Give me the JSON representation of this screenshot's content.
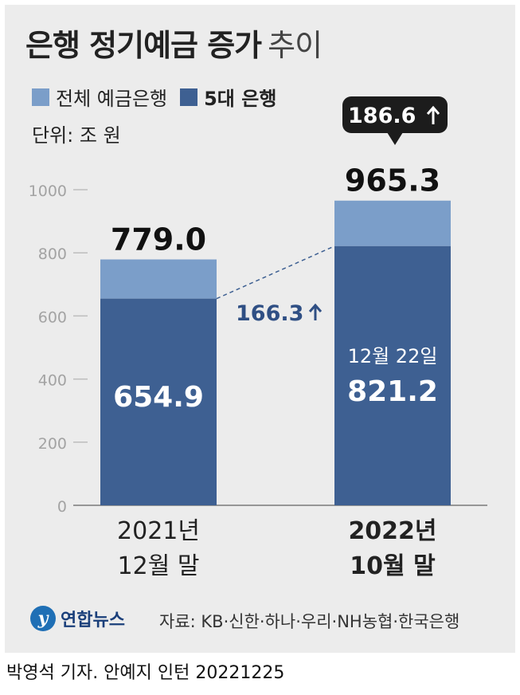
{
  "header": {
    "title_strong": "은행 정기예금 증가",
    "title_light": "추이"
  },
  "legend": [
    {
      "label": "전체 예금은행",
      "color": "#7b9ec9"
    },
    {
      "label": "5대 은행",
      "color": "#3e6092"
    }
  ],
  "unit": "단위: 조 원",
  "chart_data": {
    "type": "bar",
    "stacked": true,
    "categories": [
      {
        "line1": "2021년",
        "line2": "12월 말",
        "bold": false
      },
      {
        "line1": "2022년",
        "line2": "10월 말",
        "bold": true
      }
    ],
    "series": [
      {
        "name": "5대 은행",
        "values": [
          654.9,
          821.2
        ],
        "color": "#3e6092"
      },
      {
        "name": "전체 예금은행",
        "totals": [
          779.0,
          965.3
        ],
        "color": "#7b9ec9"
      }
    ],
    "total_labels": [
      "779.0",
      "965.3"
    ],
    "inner_labels": [
      "654.9",
      "821.2"
    ],
    "inner_sublabel": "12월 22일",
    "increase_callout": "186.6",
    "increase_inner": "166.3",
    "yticks": [
      0,
      200,
      400,
      600,
      800,
      1000
    ],
    "ylim": [
      0,
      1000
    ]
  },
  "footer": {
    "logo_text": "연합뉴스",
    "source": "자료: KB·신한·하나·우리·NH농협·한국은행",
    "credit": "박영석 기자. 안예지 인턴  20221225"
  }
}
